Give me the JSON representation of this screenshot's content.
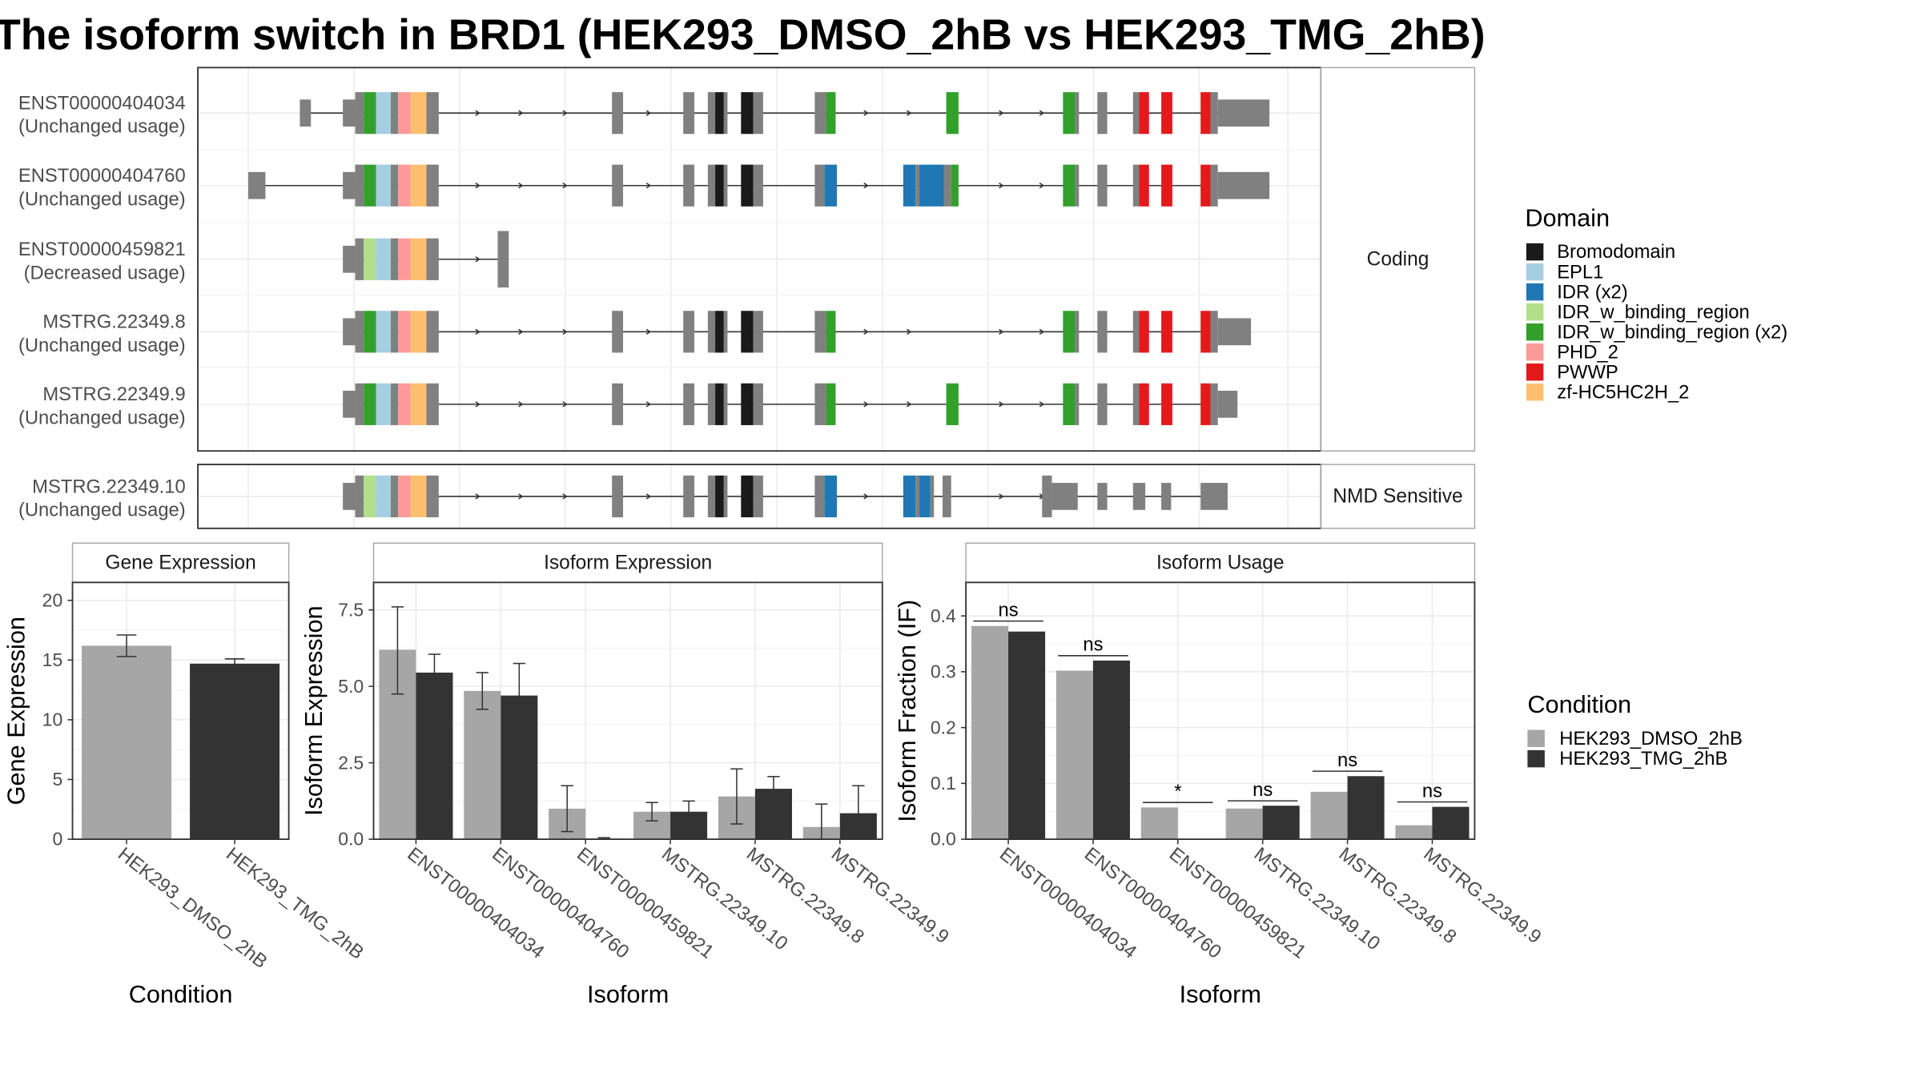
{
  "title": "The isoform switch in BRD1 (HEK293_DMSO_2hB vs HEK293_TMG_2hB)",
  "colors": {
    "exon": "#808080",
    "panel_border": "#333333",
    "strip_border": "#aaaaaa",
    "grid": "#ebebeb",
    "dmso": "#a6a6a6",
    "tmg": "#333333"
  },
  "structure": {
    "strips": {
      "coding": "Coding",
      "nmd": "NMD Sensitive"
    },
    "transcripts": [
      {
        "id": "ENST00000404034",
        "usage": "(Unchanged usage)",
        "group": "coding"
      },
      {
        "id": "ENST00000404760",
        "usage": "(Unchanged usage)",
        "group": "coding"
      },
      {
        "id": "ENST00000459821",
        "usage": "(Decreased usage)",
        "group": "coding"
      },
      {
        "id": "MSTRG.22349.8",
        "usage": "(Unchanged usage)",
        "group": "coding"
      },
      {
        "id": "MSTRG.22349.9",
        "usage": "(Unchanged usage)",
        "group": "coding"
      },
      {
        "id": "MSTRG.22349.10",
        "usage": "(Unchanged usage)",
        "group": "nmd"
      }
    ]
  },
  "legend_domain": {
    "title": "Domain",
    "items": [
      {
        "label": "Bromodomain",
        "color": "#1a1a1a"
      },
      {
        "label": "EPL1",
        "color": "#a6cee3"
      },
      {
        "label": "IDR (x2)",
        "color": "#1f78b4"
      },
      {
        "label": "IDR_w_binding_region",
        "color": "#b2df8a"
      },
      {
        "label": "IDR_w_binding_region (x2)",
        "color": "#33a02c"
      },
      {
        "label": "PHD_2",
        "color": "#fb9a99"
      },
      {
        "label": "PWWP",
        "color": "#e31a1c"
      },
      {
        "label": "zf-HC5HC2H_2",
        "color": "#fdbf6f"
      }
    ]
  },
  "legend_condition": {
    "title": "Condition",
    "items": [
      {
        "label": "HEK293_DMSO_2hB",
        "color": "#a6a6a6"
      },
      {
        "label": "HEK293_TMG_2hB",
        "color": "#333333"
      }
    ]
  },
  "chart_data": [
    {
      "type": "bar",
      "title": "Gene Expression",
      "xlabel": "Condition",
      "ylabel": "Gene Expression",
      "categories": [
        "HEK293_DMSO_2hB",
        "HEK293_TMG_2hB"
      ],
      "values": [
        16.2,
        14.7
      ],
      "err_low": [
        15.3,
        14.3
      ],
      "err_high": [
        17.1,
        15.1
      ],
      "colors": [
        "#a6a6a6",
        "#333333"
      ],
      "ylim": [
        0,
        21.5
      ],
      "yticks": [
        0,
        5,
        10,
        15,
        20
      ],
      "ytick_labels": [
        "0",
        "5",
        "10",
        "15",
        "20"
      ]
    },
    {
      "type": "bar",
      "title": "Isoform Expression",
      "xlabel": "Isoform",
      "ylabel": "Isoform Expression",
      "categories": [
        "ENST00000404034",
        "ENST00000404760",
        "ENST00000459821",
        "MSTRG.22349.10",
        "MSTRG.22349.8",
        "MSTRG.22349.9"
      ],
      "series": [
        {
          "name": "HEK293_DMSO_2hB",
          "values": [
            6.2,
            4.85,
            1.0,
            0.9,
            1.4,
            0.4
          ],
          "err_low": [
            4.75,
            4.25,
            0.25,
            0.6,
            0.5,
            0.0
          ],
          "err_high": [
            7.6,
            5.45,
            1.75,
            1.2,
            2.3,
            1.15
          ]
        },
        {
          "name": "HEK293_TMG_2hB",
          "values": [
            5.45,
            4.7,
            0.02,
            0.9,
            1.65,
            0.85
          ],
          "err_low": [
            4.8,
            3.65,
            0.0,
            0.55,
            1.25,
            0.0
          ],
          "err_high": [
            6.05,
            5.75,
            0.05,
            1.25,
            2.05,
            1.75
          ]
        }
      ],
      "ylim": [
        0,
        8.4
      ],
      "yticks": [
        0,
        2.5,
        5,
        7.5
      ],
      "ytick_labels": [
        "0.0",
        "2.5",
        "5.0",
        "7.5"
      ]
    },
    {
      "type": "bar",
      "title": "Isoform Usage",
      "xlabel": "Isoform",
      "ylabel": "Isoform Fraction (IF)",
      "categories": [
        "ENST00000404034",
        "ENST00000404760",
        "ENST00000459821",
        "MSTRG.22349.10",
        "MSTRG.22349.8",
        "MSTRG.22349.9"
      ],
      "series": [
        {
          "name": "HEK293_DMSO_2hB",
          "values": [
            0.382,
            0.302,
            0.057,
            0.055,
            0.085,
            0.025
          ]
        },
        {
          "name": "HEK293_TMG_2hB",
          "values": [
            0.372,
            0.32,
            0.0,
            0.06,
            0.113,
            0.058
          ]
        }
      ],
      "significance": [
        "ns",
        "ns",
        "*",
        "ns",
        "ns",
        "ns"
      ],
      "ylim": [
        0,
        0.46
      ],
      "yticks": [
        0,
        0.1,
        0.2,
        0.3,
        0.4
      ],
      "ytick_labels": [
        "0.0",
        "0.1",
        "0.2",
        "0.3",
        "0.4"
      ]
    }
  ]
}
